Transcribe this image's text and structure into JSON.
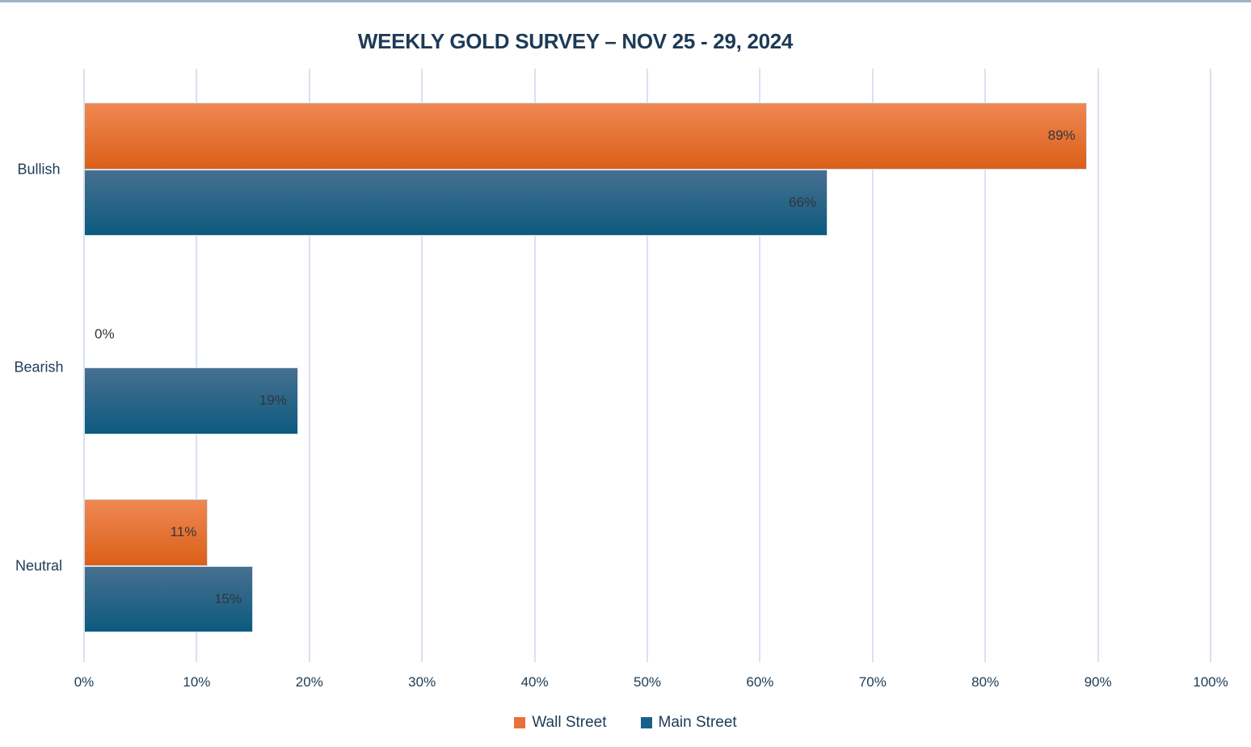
{
  "title": "WEEKLY GOLD SURVEY – NOV 25 - 29, 2024",
  "colors": {
    "title_text": "#1e3a56",
    "axis_text": "#203c58",
    "data_label_text": "#33343e",
    "gridline": "#d7e3f1",
    "top_border": "#9fb3c8",
    "wall_street_orange": "#e9703b",
    "main_street_blue": "#15618a"
  },
  "chart_data": {
    "type": "bar",
    "orientation": "horizontal",
    "title": "WEEKLY GOLD SURVEY – NOV 25 - 29, 2024",
    "categories": [
      "Bullish",
      "Bearish",
      "Neutral"
    ],
    "series": [
      {
        "name": "Wall Street",
        "values": [
          89,
          0,
          11
        ],
        "legend_color": "#e9703b",
        "gradient_top": "#ef8853",
        "gradient_bottom": "#db5f18"
      },
      {
        "name": "Main Street",
        "values": [
          66,
          19,
          15
        ],
        "legend_color": "#15618a",
        "gradient_top": "#477090",
        "gradient_bottom": "#0c5a7f"
      }
    ],
    "data_label_suffix": "%",
    "data_labels": [
      [
        "89%",
        "0%",
        "11%"
      ],
      [
        "66%",
        "19%",
        "15%"
      ]
    ],
    "xlabel": "",
    "ylabel": "",
    "xlim": [
      0,
      100
    ],
    "x_tick_labels": [
      "0%",
      "10%",
      "20%",
      "30%",
      "40%",
      "50%",
      "60%",
      "70%",
      "80%",
      "90%",
      "100%"
    ],
    "grid": "vertical-only",
    "legend_position": "bottom"
  }
}
